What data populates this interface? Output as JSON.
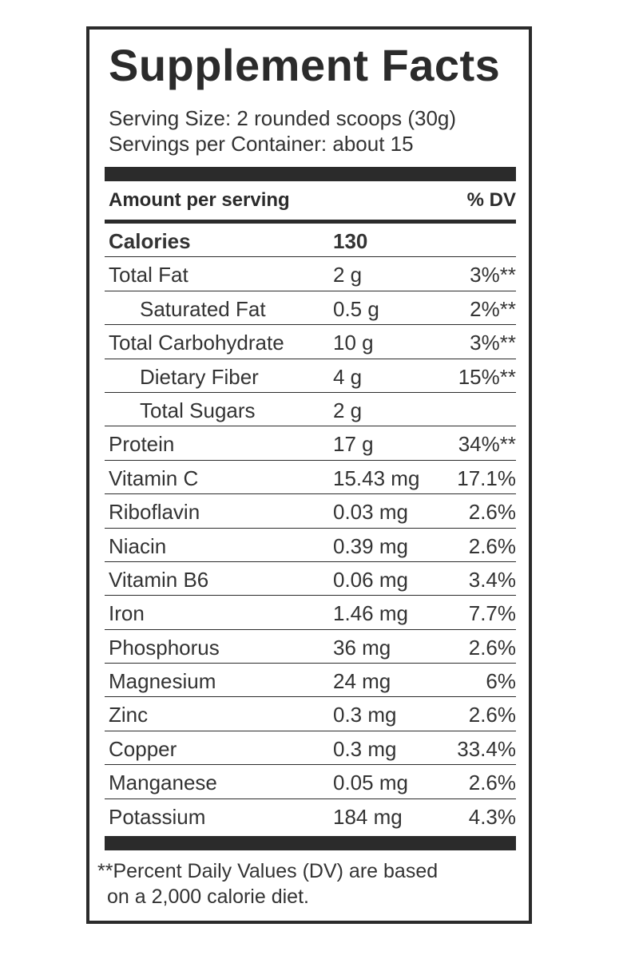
{
  "label": {
    "title": "Supplement Facts",
    "serving_size": "Serving Size: 2 rounded scoops (30g)",
    "servings_per_container": "Servings per Container: about 15",
    "header_amount": "Amount per serving",
    "header_dv": "% DV",
    "rows": [
      {
        "name": "Calories",
        "amount": "130",
        "dv": "",
        "bold": true,
        "indent": false
      },
      {
        "name": "Total Fat",
        "amount": "2 g",
        "dv": "3%**",
        "bold": false,
        "indent": false
      },
      {
        "name": "Saturated Fat",
        "amount": "0.5 g",
        "dv": "2%**",
        "bold": false,
        "indent": true
      },
      {
        "name": "Total Carbohydrate",
        "amount": "10 g",
        "dv": "3%**",
        "bold": false,
        "indent": false
      },
      {
        "name": "Dietary Fiber",
        "amount": "4 g",
        "dv": "15%**",
        "bold": false,
        "indent": true
      },
      {
        "name": "Total Sugars",
        "amount": "2 g",
        "dv": "",
        "bold": false,
        "indent": true
      },
      {
        "name": "Protein",
        "amount": "17 g",
        "dv": "34%**",
        "bold": false,
        "indent": false
      },
      {
        "name": "Vitamin C",
        "amount": "15.43 mg",
        "dv": "17.1%",
        "bold": false,
        "indent": false
      },
      {
        "name": "Riboflavin",
        "amount": "0.03 mg",
        "dv": "2.6%",
        "bold": false,
        "indent": false
      },
      {
        "name": "Niacin",
        "amount": "0.39 mg",
        "dv": "2.6%",
        "bold": false,
        "indent": false
      },
      {
        "name": "Vitamin B6",
        "amount": "0.06 mg",
        "dv": "3.4%",
        "bold": false,
        "indent": false
      },
      {
        "name": "Iron",
        "amount": "1.46 mg",
        "dv": "7.7%",
        "bold": false,
        "indent": false
      },
      {
        "name": "Phosphorus",
        "amount": "36 mg",
        "dv": "2.6%",
        "bold": false,
        "indent": false
      },
      {
        "name": "Magnesium",
        "amount": "24 mg",
        "dv": "6%",
        "bold": false,
        "indent": false
      },
      {
        "name": "Zinc",
        "amount": "0.3 mg",
        "dv": "2.6%",
        "bold": false,
        "indent": false
      },
      {
        "name": "Copper",
        "amount": "0.3 mg",
        "dv": "33.4%",
        "bold": false,
        "indent": false
      },
      {
        "name": "Manganese",
        "amount": "0.05 mg",
        "dv": "2.6%",
        "bold": false,
        "indent": false
      },
      {
        "name": "Potassium",
        "amount": "184 mg",
        "dv": "4.3%",
        "bold": false,
        "indent": false
      }
    ],
    "footnote_line1": "**Percent Daily Values (DV) are based",
    "footnote_line2": "on a 2,000 calorie diet."
  }
}
